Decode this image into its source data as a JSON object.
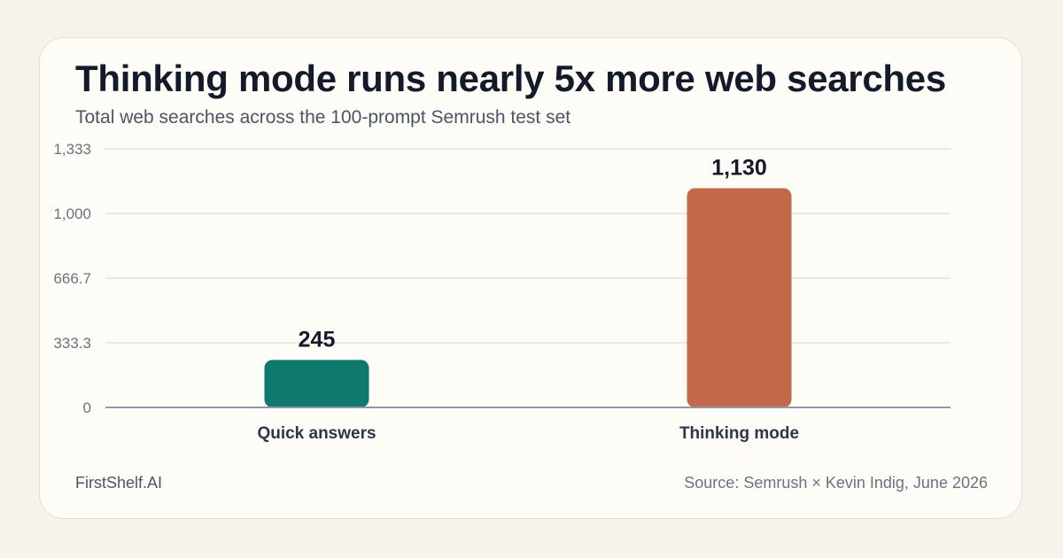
{
  "title": "Thinking mode runs nearly 5x more web searches",
  "subtitle": "Total web searches across the 100-prompt Semrush test set",
  "footer": {
    "brand": "FirstShelf.AI",
    "source": "Source: Semrush × Kevin Indig, June 2026"
  },
  "chart_data": {
    "type": "bar",
    "categories": [
      "Quick answers",
      "Thinking mode"
    ],
    "values": [
      245,
      1130
    ],
    "value_labels": [
      "245",
      "1,130"
    ],
    "bar_colors": [
      "#0e7a6e",
      "#c4684a"
    ],
    "ylim": [
      0,
      1333
    ],
    "yticks": [
      0,
      333.3,
      666.7,
      1000,
      1333
    ],
    "ytick_labels": [
      "0",
      "333.3",
      "666.7",
      "1,000",
      "1,333"
    ],
    "grid": true,
    "legend": "none"
  }
}
